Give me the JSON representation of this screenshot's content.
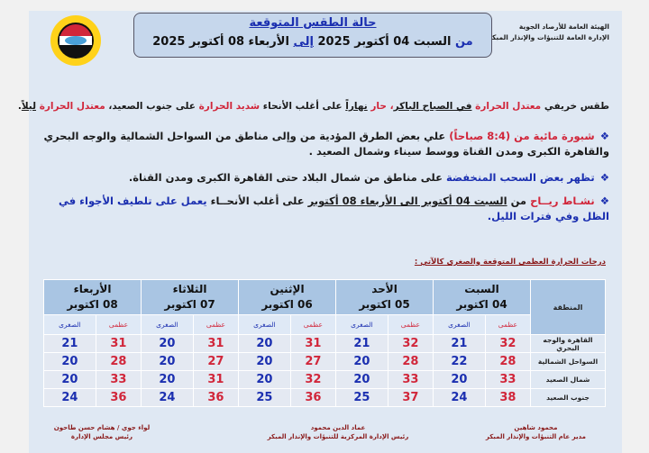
{
  "org": {
    "line1": "الهيئة العامة للأرصاد الجوية",
    "line2": "الإدارة العامة للتنبؤات والإنذار المبكر"
  },
  "header": {
    "title": "حالة الطقس المتوقعة",
    "from": "من",
    "range_start": "السبت 04 أكتوبر 2025",
    "to": "إلى",
    "range_end": "الأربعاء 08 أكتوبر 2025"
  },
  "summary": {
    "s1": "طقس خريفي ",
    "s2": "معتدل الحرارة",
    "s3": " ",
    "s4": "في الصباح الباكر",
    "s5": "، حار ",
    "s6": "نهاراً",
    "s7": " على أغلب الأنحاء ",
    "s8": "شديد الحرارة",
    "s9": " على جنوب الصعيد، ",
    "s10": "معتدل الحرارة",
    "s11": " ",
    "s12": "ليلاً",
    "s13": "."
  },
  "bullets": [
    {
      "marker": "❖",
      "a": "شبورة مائية من (8:4 صباحاً)",
      "b": " علي بعض الطرق المؤدية من وإلى مناطق من السواحل الشمالية والوجه البحري والقاهرة الكبرى ومدن القناة ووسط سيناء وشمال الصعيد ."
    },
    {
      "marker": "❖",
      "a": "تظهر بعض السحب المنخفضة",
      "b": " على مناطق من شمال البلاد حتى القاهرة الكبرى ومدن القناة."
    },
    {
      "marker": "❖",
      "a": "نشـاط ريــاح",
      "b": " من ",
      "c": "السبت 04 أكتوبر الى الأربعاء 08 أكتوبر",
      "d": " على أغلب الأنحــاء ",
      "e": "يعمل على تلطيف الأجواء",
      "f": " في الظل وفي فترات الليل."
    }
  ],
  "table": {
    "title": "درجات الحرارة العظمى المتوقعة والصغرى كالآتي :",
    "region_header": "المنطقة",
    "max_label": "عظمى",
    "min_label": "الصغرى",
    "days": [
      {
        "day": "السبت",
        "date": "04 اكتوبر"
      },
      {
        "day": "الأحد",
        "date": "05 اكتوبر"
      },
      {
        "day": "الإثنين",
        "date": "06 اكتوبر"
      },
      {
        "day": "الثلاثاء",
        "date": "07 اكتوبر"
      },
      {
        "day": "الأربعاء",
        "date": "08 اكتوبر"
      }
    ],
    "rows": [
      {
        "region": "القاهرة والوجه البحري",
        "values": [
          [
            32,
            21
          ],
          [
            32,
            21
          ],
          [
            31,
            20
          ],
          [
            31,
            20
          ],
          [
            31,
            21
          ]
        ]
      },
      {
        "region": "السواحل الشمالية",
        "values": [
          [
            28,
            22
          ],
          [
            28,
            20
          ],
          [
            27,
            20
          ],
          [
            27,
            20
          ],
          [
            28,
            20
          ]
        ]
      },
      {
        "region": "شمال الصعيد",
        "values": [
          [
            33,
            20
          ],
          [
            33,
            20
          ],
          [
            32,
            20
          ],
          [
            31,
            20
          ],
          [
            33,
            20
          ]
        ]
      },
      {
        "region": "جنوب الصعيد",
        "values": [
          [
            38,
            24
          ],
          [
            37,
            25
          ],
          [
            36,
            25
          ],
          [
            36,
            24
          ],
          [
            36,
            24
          ]
        ]
      }
    ]
  },
  "signatures": [
    {
      "name": "محمود شاهين",
      "title": "مدير عام التنبؤات والإنذار المبكر"
    },
    {
      "name": "عماد الدين محمود",
      "title": "رئيس الإدارة المركزية للتنبؤات والإنذار المبكر"
    },
    {
      "name": "لواء جوي / هشام حسن طاحون",
      "title": "رئيس مجلس الإدارة"
    }
  ],
  "colors": {
    "blue": "#1b2fb0",
    "red": "#d1263a",
    "panel": "#dfe8f3"
  }
}
